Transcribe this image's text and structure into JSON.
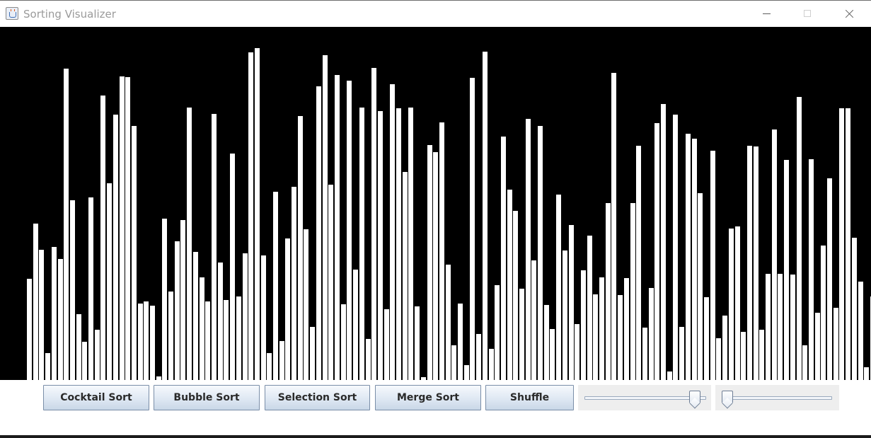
{
  "window": {
    "title": "Sorting Visualizer"
  },
  "controls": {
    "buttons": [
      {
        "label": "Cocktail Sort"
      },
      {
        "label": "Bubble Sort"
      },
      {
        "label": "Selection Sort"
      },
      {
        "label": "Merge Sort"
      },
      {
        "label": "Shuffle"
      }
    ],
    "sliders": [
      {
        "value_fraction": 0.95
      },
      {
        "value_fraction": 0.0
      }
    ]
  },
  "colors": {
    "canvas_background": "#000000",
    "bar": "#ffffff"
  },
  "bars": {
    "max_value": 470,
    "values": [
      143,
      221,
      184,
      38,
      188,
      171,
      441,
      255,
      93,
      54,
      259,
      71,
      403,
      279,
      376,
      430,
      429,
      360,
      108,
      111,
      105,
      5,
      228,
      125,
      196,
      226,
      386,
      181,
      145,
      111,
      377,
      166,
      113,
      321,
      118,
      179,
      464,
      470,
      176,
      38,
      267,
      55,
      200,
      274,
      374,
      213,
      75,
      416,
      460,
      277,
      432,
      107,
      424,
      156,
      386,
      58,
      442,
      381,
      100,
      419,
      385,
      295,
      386,
      104,
      4,
      333,
      323,
      365,
      163,
      49,
      108,
      21,
      428,
      65,
      465,
      44,
      134,
      345,
      270,
      240,
      129,
      370,
      169,
      360,
      106,
      72,
      263,
      183,
      219,
      79,
      155,
      204,
      121,
      145,
      251,
      435,
      120,
      144,
      251,
      332,
      74,
      130,
      364,
      391,
      12,
      376,
      75,
      349,
      342,
      265,
      117,
      325,
      59,
      91,
      214,
      217,
      68,
      332,
      331,
      71,
      150,
      355,
      150,
      312,
      149,
      401,
      49,
      313,
      95,
      190,
      286,
      102,
      385,
      385,
      201,
      139,
      18,
      118
    ]
  }
}
